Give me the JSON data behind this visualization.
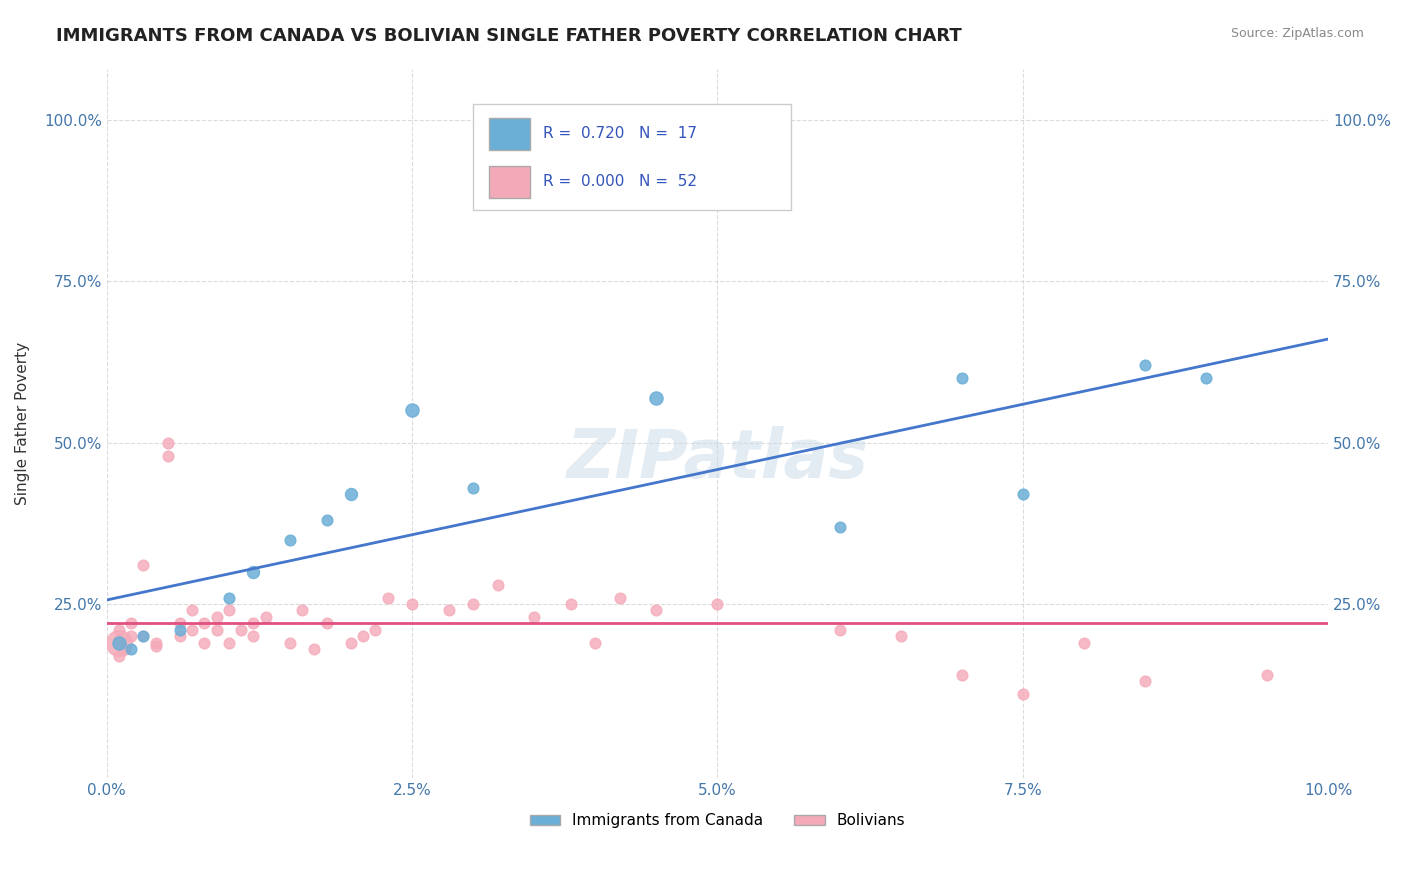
{
  "title": "IMMIGRANTS FROM CANADA VS BOLIVIAN SINGLE FATHER POVERTY CORRELATION CHART",
  "source": "Source: ZipAtlas.com",
  "ylabel": "Single Father Poverty",
  "xlim": [
    0.0,
    0.1
  ],
  "xtick_labels": [
    "0.0%",
    "2.5%",
    "5.0%",
    "7.5%",
    "10.0%"
  ],
  "xtick_vals": [
    0.0,
    0.025,
    0.05,
    0.075,
    0.1
  ],
  "ytick_labels": [
    "25.0%",
    "50.0%",
    "75.0%",
    "100.0%"
  ],
  "ytick_vals": [
    0.25,
    0.5,
    0.75,
    1.0
  ],
  "blue_color": "#6baed6",
  "pink_color": "#f4a9b8",
  "trend_blue": "#4477cc",
  "trend_pink": "#e05080",
  "watermark": "ZIPatlas",
  "blue_points": [
    [
      0.001,
      0.19
    ],
    [
      0.002,
      0.18
    ],
    [
      0.003,
      0.2
    ],
    [
      0.006,
      0.21
    ],
    [
      0.01,
      0.26
    ],
    [
      0.012,
      0.3
    ],
    [
      0.015,
      0.35
    ],
    [
      0.018,
      0.38
    ],
    [
      0.02,
      0.42
    ],
    [
      0.025,
      0.55
    ],
    [
      0.03,
      0.43
    ],
    [
      0.045,
      0.57
    ],
    [
      0.06,
      0.37
    ],
    [
      0.07,
      0.6
    ],
    [
      0.075,
      0.42
    ],
    [
      0.085,
      0.62
    ],
    [
      0.09,
      0.6
    ]
  ],
  "blue_sizes": [
    90,
    60,
    60,
    60,
    60,
    75,
    60,
    60,
    75,
    90,
    60,
    90,
    60,
    60,
    60,
    60,
    60
  ],
  "pink_points": [
    [
      0.0005,
      0.19
    ],
    [
      0.001,
      0.195
    ],
    [
      0.001,
      0.17
    ],
    [
      0.001,
      0.21
    ],
    [
      0.0015,
      0.18
    ],
    [
      0.002,
      0.2
    ],
    [
      0.002,
      0.22
    ],
    [
      0.003,
      0.2
    ],
    [
      0.003,
      0.31
    ],
    [
      0.004,
      0.185
    ],
    [
      0.004,
      0.19
    ],
    [
      0.005,
      0.5
    ],
    [
      0.005,
      0.48
    ],
    [
      0.006,
      0.22
    ],
    [
      0.006,
      0.2
    ],
    [
      0.007,
      0.21
    ],
    [
      0.007,
      0.24
    ],
    [
      0.008,
      0.22
    ],
    [
      0.008,
      0.19
    ],
    [
      0.009,
      0.23
    ],
    [
      0.009,
      0.21
    ],
    [
      0.01,
      0.24
    ],
    [
      0.01,
      0.19
    ],
    [
      0.011,
      0.21
    ],
    [
      0.012,
      0.22
    ],
    [
      0.012,
      0.2
    ],
    [
      0.013,
      0.23
    ],
    [
      0.015,
      0.19
    ],
    [
      0.016,
      0.24
    ],
    [
      0.017,
      0.18
    ],
    [
      0.018,
      0.22
    ],
    [
      0.02,
      0.19
    ],
    [
      0.021,
      0.2
    ],
    [
      0.022,
      0.21
    ],
    [
      0.023,
      0.26
    ],
    [
      0.025,
      0.25
    ],
    [
      0.028,
      0.24
    ],
    [
      0.03,
      0.25
    ],
    [
      0.032,
      0.28
    ],
    [
      0.035,
      0.23
    ],
    [
      0.038,
      0.25
    ],
    [
      0.04,
      0.19
    ],
    [
      0.042,
      0.26
    ],
    [
      0.045,
      0.24
    ],
    [
      0.05,
      0.25
    ],
    [
      0.06,
      0.21
    ],
    [
      0.065,
      0.2
    ],
    [
      0.07,
      0.14
    ],
    [
      0.075,
      0.11
    ],
    [
      0.08,
      0.19
    ],
    [
      0.085,
      0.13
    ],
    [
      0.095,
      0.14
    ]
  ],
  "big_pink_point": [
    0.001,
    0.19
  ],
  "big_pink_size": 350
}
